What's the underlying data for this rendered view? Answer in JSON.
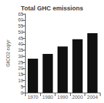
{
  "chart_data": {
    "type": "bar",
    "title": "Total GHC emissions",
    "ylabel": "GtCO2 eq/yr",
    "categories": [
      "1970",
      "1980",
      "1990",
      "2000",
      "2004"
    ],
    "values": [
      28.0,
      32.0,
      38.0,
      44.0,
      49.0
    ],
    "color": "#111111",
    "ylim": [
      0,
      65
    ],
    "yticks": [
      0,
      5,
      10,
      15,
      20,
      25,
      30,
      35,
      40,
      45,
      50,
      55,
      60,
      65
    ],
    "grid": false
  }
}
